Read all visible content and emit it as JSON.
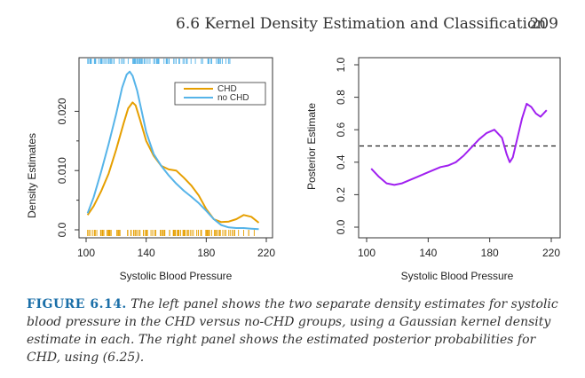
{
  "header": {
    "section": "6.6 Kernel Density Estimation and Classification",
    "page": "209"
  },
  "caption": {
    "label": "FIGURE 6.14.",
    "text": "The left panel shows the two separate density estimates for systolic blood pressure in the CHD versus no-CHD groups, using a Gaussian kernel density estimate in each. The right panel shows the estimated posterior probabilities for CHD, using (6.25)."
  },
  "colors": {
    "chd": "#E69F00",
    "no_chd": "#56B4E9",
    "posterior": "#A020F0",
    "axis": "#333333"
  },
  "chart_data": [
    {
      "type": "line",
      "xlabel": "Systolic Blood Pressure",
      "ylabel": "Density Estimates",
      "xlim": [
        100,
        220
      ],
      "ylim": [
        0,
        0.028
      ],
      "xticks": [
        "100",
        "140",
        "180",
        "220"
      ],
      "yticks": [
        "0.0",
        "0.010",
        "0.020"
      ],
      "legend": "top-right",
      "series": [
        {
          "name": "CHD",
          "color": "#E69F00",
          "x": [
            101,
            105,
            110,
            115,
            120,
            125,
            128,
            131,
            133,
            136,
            140,
            145,
            150,
            155,
            160,
            165,
            170,
            175,
            180,
            185,
            190,
            195,
            200,
            205,
            210,
            215
          ],
          "y": [
            0.0025,
            0.004,
            0.0065,
            0.0095,
            0.0135,
            0.018,
            0.0205,
            0.0215,
            0.021,
            0.0185,
            0.015,
            0.0125,
            0.0108,
            0.0102,
            0.01,
            0.0088,
            0.0075,
            0.0058,
            0.0035,
            0.0018,
            0.0013,
            0.0014,
            0.0018,
            0.0025,
            0.0022,
            0.0012
          ]
        },
        {
          "name": "no CHD",
          "color": "#56B4E9",
          "x": [
            101,
            105,
            110,
            115,
            120,
            124,
            127,
            129,
            131,
            134,
            137,
            140,
            145,
            150,
            155,
            160,
            165,
            170,
            175,
            180,
            185,
            190,
            195,
            200,
            205,
            210,
            215
          ],
          "y": [
            0.0028,
            0.0055,
            0.0098,
            0.0145,
            0.0195,
            0.024,
            0.0262,
            0.0267,
            0.026,
            0.0235,
            0.02,
            0.0165,
            0.0128,
            0.0108,
            0.0092,
            0.0078,
            0.0066,
            0.0056,
            0.0045,
            0.0032,
            0.0018,
            0.0008,
            0.0004,
            0.0003,
            0.0003,
            0.0002,
            0.0001
          ]
        }
      ]
    },
    {
      "type": "line",
      "xlabel": "Systolic Blood Pressure",
      "ylabel": "Posterior Estimate",
      "xlim": [
        100,
        220
      ],
      "ylim": [
        0,
        1.0
      ],
      "xticks": [
        "100",
        "140",
        "180",
        "220"
      ],
      "yticks": [
        "0.0",
        "0.2",
        "0.4",
        "0.6",
        "0.8",
        "1.0"
      ],
      "reference_line": 0.5,
      "series": [
        {
          "color": "#A020F0",
          "x": [
            103,
            108,
            113,
            118,
            123,
            128,
            133,
            138,
            143,
            148,
            153,
            158,
            163,
            168,
            173,
            178,
            183,
            188,
            191,
            193,
            195,
            198,
            201,
            204,
            207,
            210,
            213,
            217
          ],
          "y": [
            0.36,
            0.31,
            0.27,
            0.26,
            0.27,
            0.29,
            0.31,
            0.33,
            0.35,
            0.37,
            0.38,
            0.4,
            0.44,
            0.49,
            0.54,
            0.58,
            0.6,
            0.55,
            0.45,
            0.4,
            0.43,
            0.55,
            0.67,
            0.76,
            0.74,
            0.7,
            0.68,
            0.72
          ]
        }
      ]
    }
  ]
}
